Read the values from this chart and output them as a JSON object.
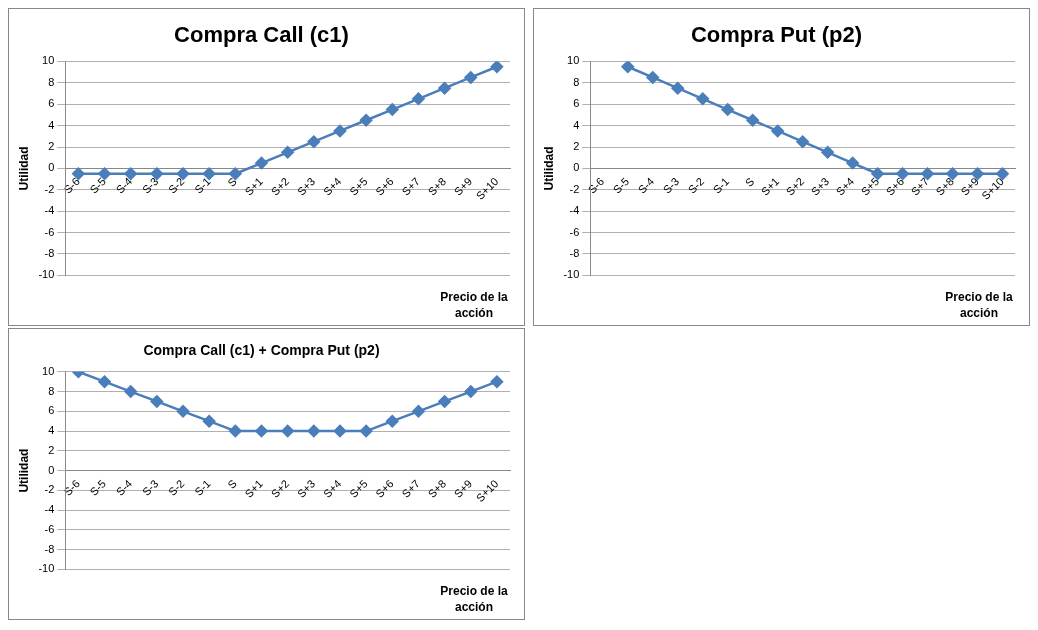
{
  "chart_data": [
    {
      "type": "line",
      "title": "Compra Call (c1)",
      "ylabel": "Utilidad",
      "xlabel": "Precio de la acción",
      "categories": [
        "S-6",
        "S-5",
        "S-4",
        "S-3",
        "S-2",
        "S-1",
        "S",
        "S+1",
        "S+2",
        "S+3",
        "S+4",
        "S+5",
        "S+6",
        "S+7",
        "S+8",
        "S+9",
        "S+10"
      ],
      "series": [
        {
          "color": "#4a7ebb",
          "values": [
            -0.5,
            -0.5,
            -0.5,
            -0.5,
            -0.5,
            -0.5,
            -0.5,
            0.5,
            1.5,
            2.5,
            3.5,
            4.5,
            5.5,
            6.5,
            7.5,
            8.5,
            9.5
          ]
        }
      ],
      "ylim": [
        -10,
        10
      ],
      "yticks": [
        -10,
        -8,
        -6,
        -4,
        -2,
        0,
        2,
        4,
        6,
        8,
        10
      ],
      "grid": "y",
      "marker": "diamond",
      "legend": false
    },
    {
      "type": "line",
      "title": "Compra Put (p2)",
      "ylabel": "Utilidad",
      "xlabel": "Precio de la acción",
      "categories": [
        "S-6",
        "S-5",
        "S-4",
        "S-3",
        "S-2",
        "S-1",
        "S",
        "S+1",
        "S+2",
        "S+3",
        "S+4",
        "S+5",
        "S+6",
        "S+7",
        "S+8",
        "S+9",
        "S+10"
      ],
      "series": [
        {
          "color": "#4a7ebb",
          "values": [
            null,
            9.5,
            8.5,
            7.5,
            6.5,
            5.5,
            4.5,
            3.5,
            2.5,
            1.5,
            0.5,
            -0.5,
            -0.5,
            -0.5,
            -0.5,
            -0.5,
            -0.5
          ]
        }
      ],
      "ylim": [
        -10,
        10
      ],
      "yticks": [
        -10,
        -8,
        -6,
        -4,
        -2,
        0,
        2,
        4,
        6,
        8,
        10
      ],
      "grid": "y",
      "marker": "diamond",
      "legend": false
    },
    {
      "type": "line",
      "title": "Compra Call (c1) + Compra Put (p2)",
      "ylabel": "Utilidad",
      "xlabel": "Precio de la acción",
      "categories": [
        "S-6",
        "S-5",
        "S-4",
        "S-3",
        "S-2",
        "S-1",
        "S",
        "S+1",
        "S+2",
        "S+3",
        "S+4",
        "S+5",
        "S+6",
        "S+7",
        "S+8",
        "S+9",
        "S+10"
      ],
      "series": [
        {
          "color": "#4a7ebb",
          "values": [
            10,
            9,
            8,
            7,
            6,
            5,
            4,
            4,
            4,
            4,
            4,
            4,
            5,
            6,
            7,
            8,
            9
          ]
        }
      ],
      "ylim": [
        -10,
        10
      ],
      "yticks": [
        -10,
        -8,
        -6,
        -4,
        -2,
        0,
        2,
        4,
        6,
        8,
        10
      ],
      "grid": "y",
      "marker": "diamond",
      "legend": false
    }
  ]
}
